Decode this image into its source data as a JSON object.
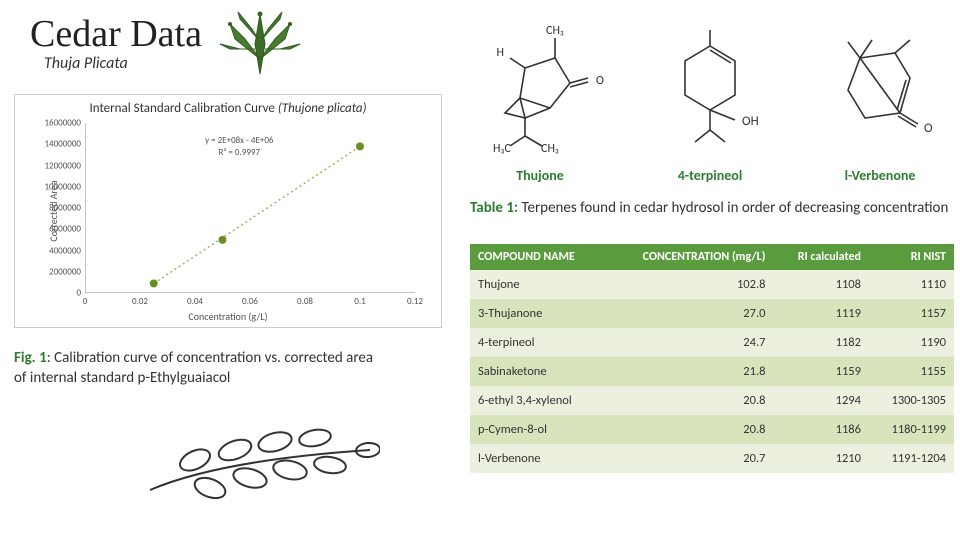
{
  "header": {
    "title": "Cedar Data",
    "subtitle": "Thuja Plicata"
  },
  "chart": {
    "title_prefix": "Internal Standard Calibration Curve ",
    "title_italic": "(Thujone plicata)",
    "type": "scatter",
    "x_label": "Concentration (g/L)",
    "y_label": "Corrected Area",
    "xlim": [
      0,
      0.12
    ],
    "ylim": [
      0,
      16000000
    ],
    "x_ticks": [
      0,
      0.02,
      0.04,
      0.06,
      0.08,
      0.1,
      0.12
    ],
    "y_ticks": [
      0,
      2000000,
      4000000,
      6000000,
      8000000,
      10000000,
      12000000,
      14000000,
      16000000
    ],
    "points": [
      {
        "x": 0.025,
        "y": 900000
      },
      {
        "x": 0.05,
        "y": 5000000
      },
      {
        "x": 0.1,
        "y": 13800000
      }
    ],
    "equation": "y = 2E+08x - 4E+06",
    "r2": "R² = 0.9997",
    "point_color": "#6b8e23",
    "trendline_color": "#8fbc5a",
    "axis_color": "#888888",
    "background": "#ffffff"
  },
  "fig1": {
    "label": "Fig. 1",
    "text": ": Calibration curve of concentration vs. corrected area of internal standard p-Ethylguaiacol"
  },
  "molecules": [
    {
      "name": "Thujone"
    },
    {
      "name": "4-terpineol"
    },
    {
      "name": "l-Verbenone"
    }
  ],
  "table_caption": {
    "label": "Table 1:",
    "text": " Terpenes found in cedar hydrosol in order of decreasing concentration"
  },
  "table": {
    "columns": [
      {
        "label": "COMPOUND NAME",
        "align": "left"
      },
      {
        "label": "CONCENTRATION (mg/L)",
        "align": "right"
      },
      {
        "label": "RI calculated",
        "align": "right"
      },
      {
        "label": "RI NIST",
        "align": "right"
      }
    ],
    "rows": [
      [
        "Thujone",
        "102.8",
        "1108",
        "1110"
      ],
      [
        "3-Thujanone",
        "27.0",
        "1119",
        "1157"
      ],
      [
        "4-terpineol",
        "24.7",
        "1182",
        "1190"
      ],
      [
        "Sabinaketone",
        "21.8",
        "1159",
        "1155"
      ],
      [
        "6-ethyl 3,4-xylenol",
        "20.8",
        "1294",
        "1300-1305"
      ],
      [
        "p-Cymen-8-ol",
        "20.8",
        "1186",
        "1180-1199"
      ],
      [
        "l-Verbenone",
        "20.7",
        "1210",
        "1191-1204"
      ]
    ],
    "header_bg": "#5a9b3e",
    "header_fg": "#ffffff",
    "row_odd_bg": "#ebf1de",
    "row_even_bg": "#d8e4bc"
  }
}
